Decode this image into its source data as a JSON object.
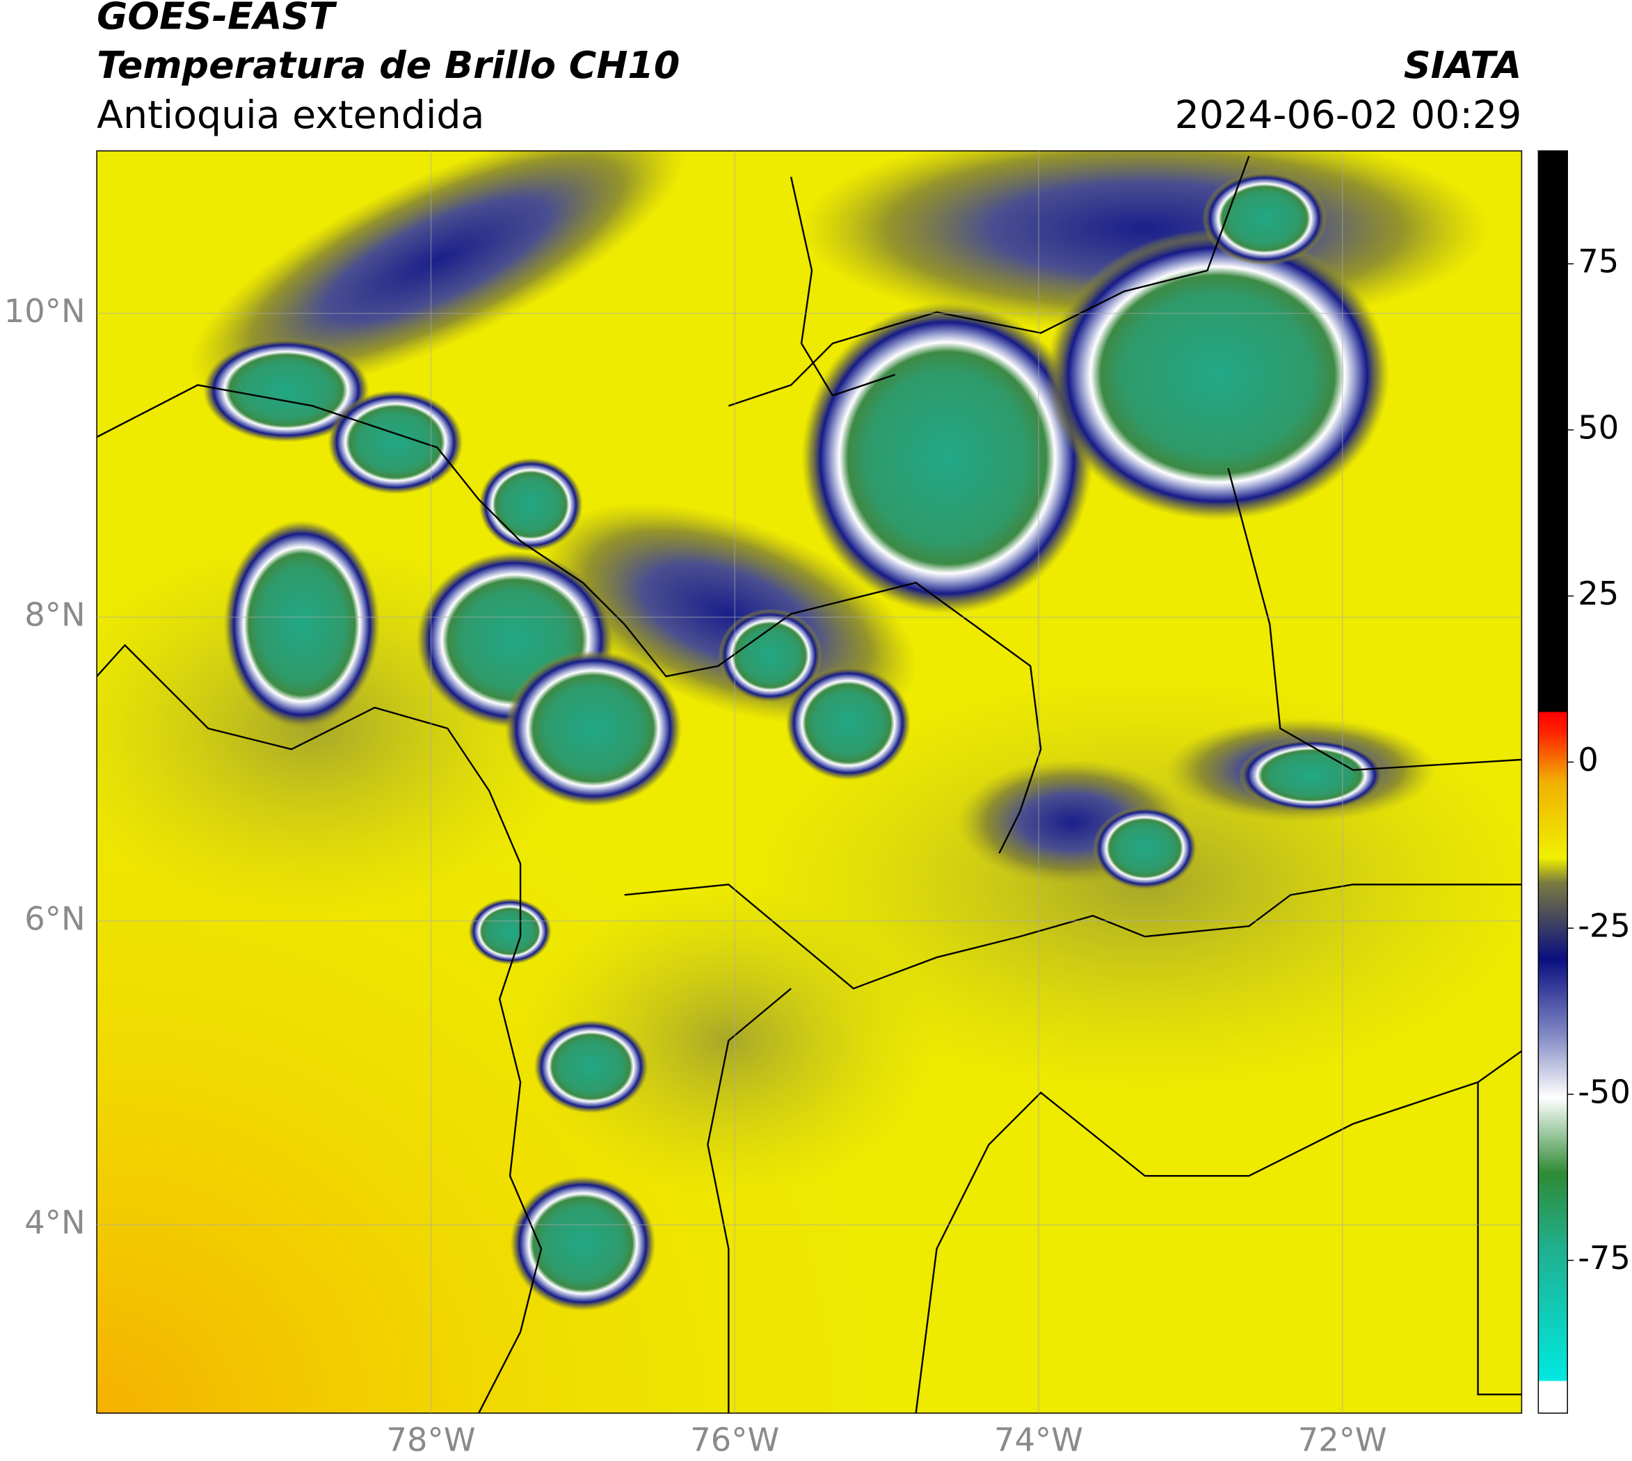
{
  "header": {
    "title": "GOES-EAST",
    "subtitle": "Temperatura de Brillo CH10",
    "region": "Antioquia extendida",
    "source": "SIATA",
    "datetime": "2024-06-02 00:29"
  },
  "map": {
    "xlim": [
      -80.2,
      -70.82
    ],
    "ylim": [
      2.76,
      11.07
    ],
    "xticks": [
      {
        "value": -78,
        "label": "78°W"
      },
      {
        "value": -76,
        "label": "76°W"
      },
      {
        "value": -74,
        "label": "74°W"
      },
      {
        "value": -72,
        "label": "72°W"
      }
    ],
    "yticks": [
      {
        "value": 10,
        "label": "10°N"
      },
      {
        "value": 8,
        "label": "8°N"
      },
      {
        "value": 6,
        "label": "6°N"
      },
      {
        "value": 4,
        "label": "4°N"
      }
    ]
  },
  "colorbar": {
    "lim": [
      -98,
      92
    ],
    "ticks": [
      75,
      50,
      25,
      0,
      -25,
      -50,
      -75
    ]
  }
}
